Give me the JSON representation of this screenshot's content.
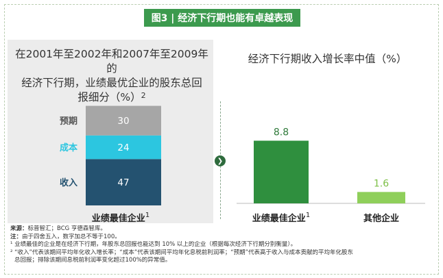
{
  "header": {
    "title": "图3 | 经济下行期也能有卓越表现"
  },
  "left": {
    "title_line1": "在2001年至2002年和2007年至2009年的",
    "title_line2": "经济下行期，业绩最优企业的股东总回",
    "title_line3": "报细分（%）",
    "title_sup": "2"
  },
  "right": {
    "title": "经济下行期收入增长率中值（%）"
  },
  "chart_data": [
    {
      "type": "bar",
      "stacked": true,
      "title": "在2001年至2002年和2007年至2009年的经济下行期，业绩最优企业的股东总回报细分（%）",
      "categories": [
        "业绩最佳企业"
      ],
      "category_sup": "1",
      "series": [
        {
          "name": "收入",
          "values": [
            47
          ],
          "color": "#245270"
        },
        {
          "name": "成本",
          "values": [
            24
          ],
          "color": "#2cc6e0"
        },
        {
          "name": "预期",
          "values": [
            30
          ],
          "color": "#a6a6a6"
        }
      ],
      "label_colors": {
        "收入": "#245270",
        "成本": "#2cc6e0",
        "预期": "#555555"
      }
    },
    {
      "type": "bar",
      "title": "经济下行期收入增长率中值（%）",
      "categories": [
        "业绩最佳企业",
        "其他企业"
      ],
      "category_sups": [
        "1",
        ""
      ],
      "values": [
        8.8,
        1.6
      ],
      "colors": [
        "#2f8f3e",
        "#8fcf5a"
      ],
      "label_colors": [
        "#2f7a3a",
        "#7cbf45"
      ],
      "ylim": [
        0,
        12
      ]
    }
  ],
  "notes": [
    {
      "label": "来源：",
      "text": "标普智汇；BCG 亨德森智库。"
    },
    {
      "label": "注：",
      "text": "由于四舍五入，数字加总不等于100。"
    },
    {
      "label": "",
      "text": "¹ 业绩最佳的企业是在经济下行期，年股东总回报也能达到 10% 以上的企业（根据每次经济下行期分别衡量）。"
    },
    {
      "label": "",
      "text": "² “收入”代表该期间平均年化收入增长率；“成本”代表该期间平均年化息税前利润率；“预期”代表高于收入与成本贡献的平均年化股东"
    },
    {
      "label": "",
      "text": "总回报；排除该期间息税前利润率变化超过100%的异常值。"
    }
  ]
}
